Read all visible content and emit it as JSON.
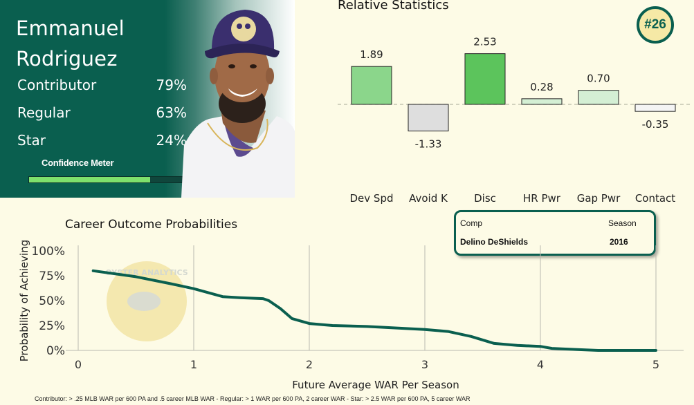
{
  "player": {
    "first_name": "Emmanuel",
    "last_name": "Rodriguez",
    "probabilities": [
      {
        "label": "Contributor",
        "value": "79%"
      },
      {
        "label": "Regular",
        "value": "63%"
      },
      {
        "label": "Star",
        "value": "24%"
      }
    ],
    "confidence_label": "Confidence Meter",
    "confidence_fraction": 0.77
  },
  "rank_badge": "#26",
  "comp": {
    "header_name": "Comp",
    "header_season": "Season",
    "name": "Delino DeShields",
    "season": "2016"
  },
  "watermark_text": "OYSTER ANALYTICS",
  "footnote": "Contributor: > .25 MLB WAR per 600 PA and .5 career MLB WAR - Regular: > 1 WAR per 600 PA, 2 career WAR - Star: > 2.5 WAR per 600 PA, 5 career WAR",
  "colors": {
    "brand_green": "#0a5f4f",
    "background": "#fdfbe6",
    "bar_strong_green": "#5cc45c",
    "bar_mid_green": "#8bd68b",
    "bar_light_green": "#d4efd4",
    "bar_negative": "#dedede",
    "meter_fill": "#7ee06c"
  },
  "chart_data": [
    {
      "type": "bar",
      "title": "Relative Statistics",
      "categories": [
        "Dev Spd",
        "Avoid K",
        "Disc",
        "HR Pwr",
        "Gap Pwr",
        "Contact"
      ],
      "values": [
        1.89,
        -1.33,
        2.53,
        0.28,
        0.7,
        -0.35
      ],
      "value_labels": [
        "1.89",
        "-1.33",
        "2.53",
        "0.28",
        "0.70",
        "-0.35"
      ],
      "ylim": [
        -1.5,
        2.6
      ],
      "baseline": 0,
      "baseline_style": "dashed",
      "grid": false
    },
    {
      "type": "line",
      "title": "Career Outcome Probabilities",
      "xlabel": "Future Average WAR Per Season",
      "ylabel": "Probability of Achieving",
      "xlim": [
        0,
        5
      ],
      "ylim": [
        0,
        1
      ],
      "x_ticks": [
        "0",
        "1",
        "2",
        "3",
        "4",
        "5"
      ],
      "y_ticks": [
        "0%",
        "25%",
        "50%",
        "75%",
        "100%"
      ],
      "grid": "vertical",
      "series": [
        {
          "x": [
            0.13,
            0.5,
            0.8,
            1.0,
            1.25,
            1.4,
            1.6,
            1.65,
            1.75,
            1.85,
            2.0,
            2.2,
            2.5,
            3.0,
            3.2,
            3.4,
            3.6,
            3.8,
            4.0,
            4.1,
            4.3,
            4.5,
            5.0
          ],
          "y": [
            0.8,
            0.74,
            0.67,
            0.62,
            0.54,
            0.53,
            0.52,
            0.5,
            0.42,
            0.32,
            0.27,
            0.25,
            0.24,
            0.21,
            0.19,
            0.14,
            0.07,
            0.05,
            0.04,
            0.02,
            0.01,
            0.0,
            0.0
          ]
        }
      ]
    }
  ]
}
